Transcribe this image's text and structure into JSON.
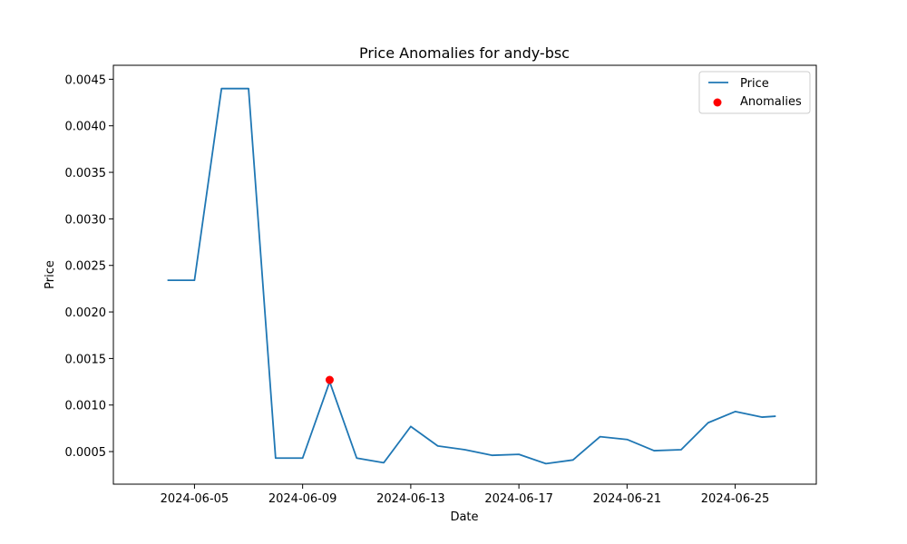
{
  "chart_data": {
    "type": "line",
    "title": "Price Anomalies for andy-bsc",
    "xlabel": "Date",
    "ylabel": "Price",
    "xlim": [
      "2024-06-02",
      "2024-06-28"
    ],
    "ylim": [
      0.00015,
      0.00465
    ],
    "x_ticks": [
      "2024-06-05",
      "2024-06-09",
      "2024-06-13",
      "2024-06-17",
      "2024-06-21",
      "2024-06-25"
    ],
    "y_ticks": [
      "0.0005",
      "0.0010",
      "0.0015",
      "0.0020",
      "0.0025",
      "0.0030",
      "0.0035",
      "0.0040",
      "0.0045"
    ],
    "grid": false,
    "legend_position": "top-right",
    "series": [
      {
        "name": "Price",
        "kind": "line",
        "color": "#1f77b4",
        "points": [
          {
            "x": "2024-06-04",
            "y": 0.00234
          },
          {
            "x": "2024-06-05",
            "y": 0.00234
          },
          {
            "x": "2024-06-06",
            "y": 0.0044
          },
          {
            "x": "2024-06-07",
            "y": 0.0044
          },
          {
            "x": "2024-06-08",
            "y": 0.00043
          },
          {
            "x": "2024-06-09",
            "y": 0.00043
          },
          {
            "x": "2024-06-10",
            "y": 0.00125
          },
          {
            "x": "2024-06-11",
            "y": 0.00043
          },
          {
            "x": "2024-06-12",
            "y": 0.00038
          },
          {
            "x": "2024-06-13",
            "y": 0.00077
          },
          {
            "x": "2024-06-14",
            "y": 0.00056
          },
          {
            "x": "2024-06-15",
            "y": 0.00052
          },
          {
            "x": "2024-06-16",
            "y": 0.00046
          },
          {
            "x": "2024-06-17",
            "y": 0.00047
          },
          {
            "x": "2024-06-18",
            "y": 0.00037
          },
          {
            "x": "2024-06-19",
            "y": 0.00041
          },
          {
            "x": "2024-06-20",
            "y": 0.00066
          },
          {
            "x": "2024-06-21",
            "y": 0.00063
          },
          {
            "x": "2024-06-22",
            "y": 0.00051
          },
          {
            "x": "2024-06-23",
            "y": 0.00052
          },
          {
            "x": "2024-06-24",
            "y": 0.00081
          },
          {
            "x": "2024-06-25",
            "y": 0.00093
          },
          {
            "x": "2024-06-26",
            "y": 0.00087
          },
          {
            "x": "2024-06-26.5",
            "y": 0.00088
          }
        ]
      },
      {
        "name": "Anomalies",
        "kind": "scatter",
        "color": "#ff0000",
        "points": [
          {
            "x": "2024-06-10",
            "y": 0.00127
          }
        ]
      }
    ]
  }
}
